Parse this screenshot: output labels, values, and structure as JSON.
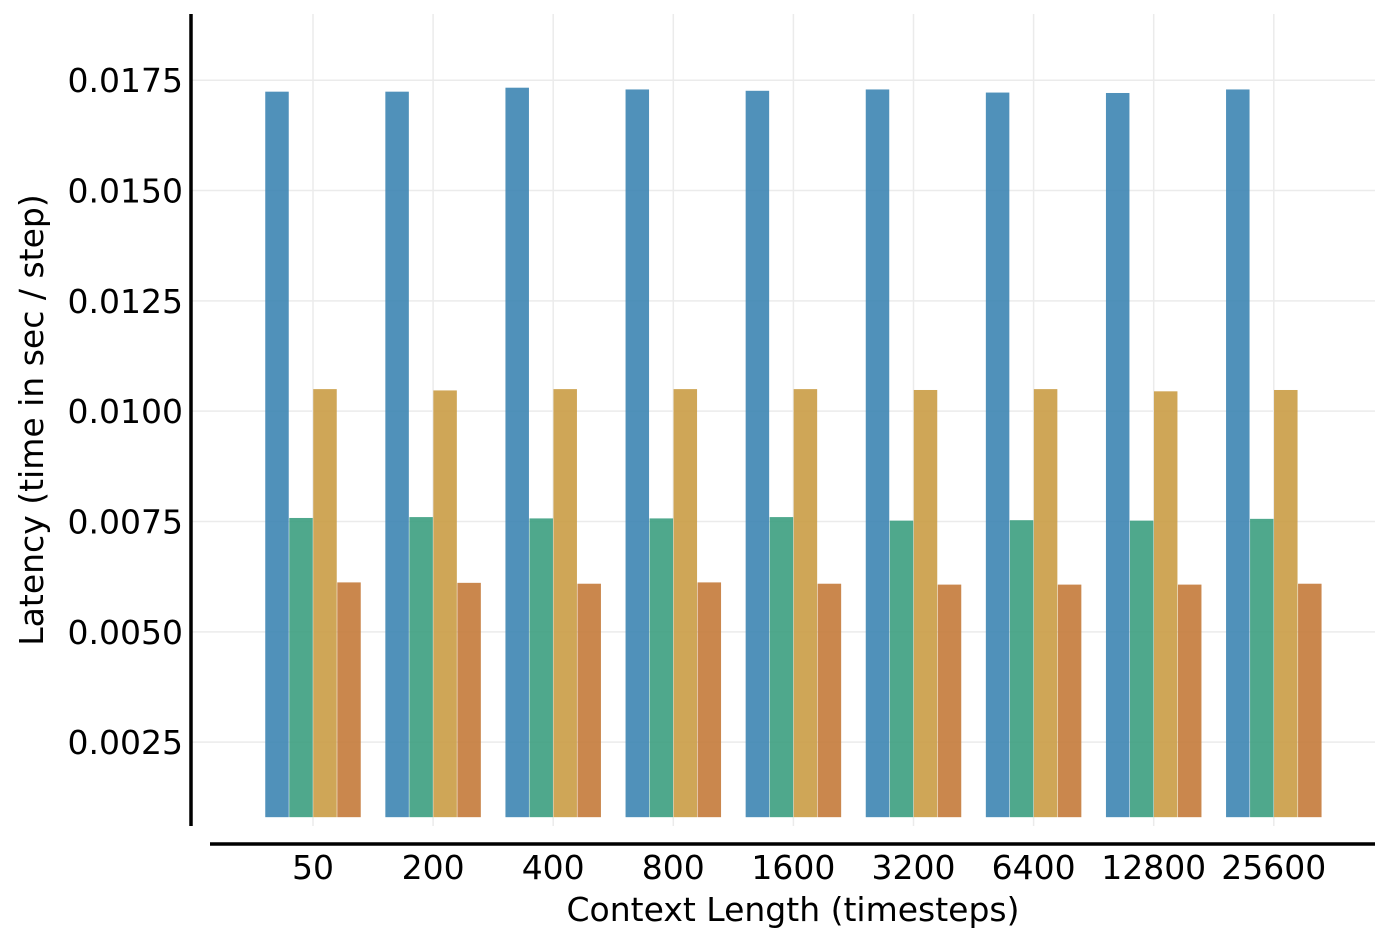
{
  "chart_data": {
    "type": "bar",
    "title": "",
    "xlabel": "Context Length (timesteps)",
    "ylabel": "Latency (time in sec / step)",
    "categories": [
      "50",
      "200",
      "400",
      "800",
      "1600",
      "3200",
      "6400",
      "12800",
      "25600"
    ],
    "ylim": [
      0.0006,
      0.019
    ],
    "yticks": [
      0.0025,
      0.005,
      0.0075,
      0.01,
      0.0125,
      0.015,
      0.0175
    ],
    "ytick_labels": [
      "0.0025",
      "0.0050",
      "0.0075",
      "0.0100",
      "0.0125",
      "0.0150",
      "0.0175"
    ],
    "bar_baseline": 0.0008,
    "grid": true,
    "legend": "none",
    "series": [
      {
        "color": "#3d85b3",
        "values": [
          0.01724,
          0.01724,
          0.01733,
          0.01729,
          0.01726,
          0.01729,
          0.01722,
          0.01721,
          0.01729
        ]
      },
      {
        "color": "#3c9e7f",
        "values": [
          0.00758,
          0.0076,
          0.00757,
          0.00757,
          0.0076,
          0.00752,
          0.00753,
          0.00752,
          0.00756
        ]
      },
      {
        "color": "#ca9c45",
        "values": [
          0.0105,
          0.01047,
          0.0105,
          0.0105,
          0.0105,
          0.01048,
          0.0105,
          0.01045,
          0.01048
        ]
      },
      {
        "color": "#c47a3a",
        "values": [
          0.00612,
          0.00611,
          0.00609,
          0.00612,
          0.00609,
          0.00607,
          0.00607,
          0.00607,
          0.00609
        ]
      }
    ]
  }
}
